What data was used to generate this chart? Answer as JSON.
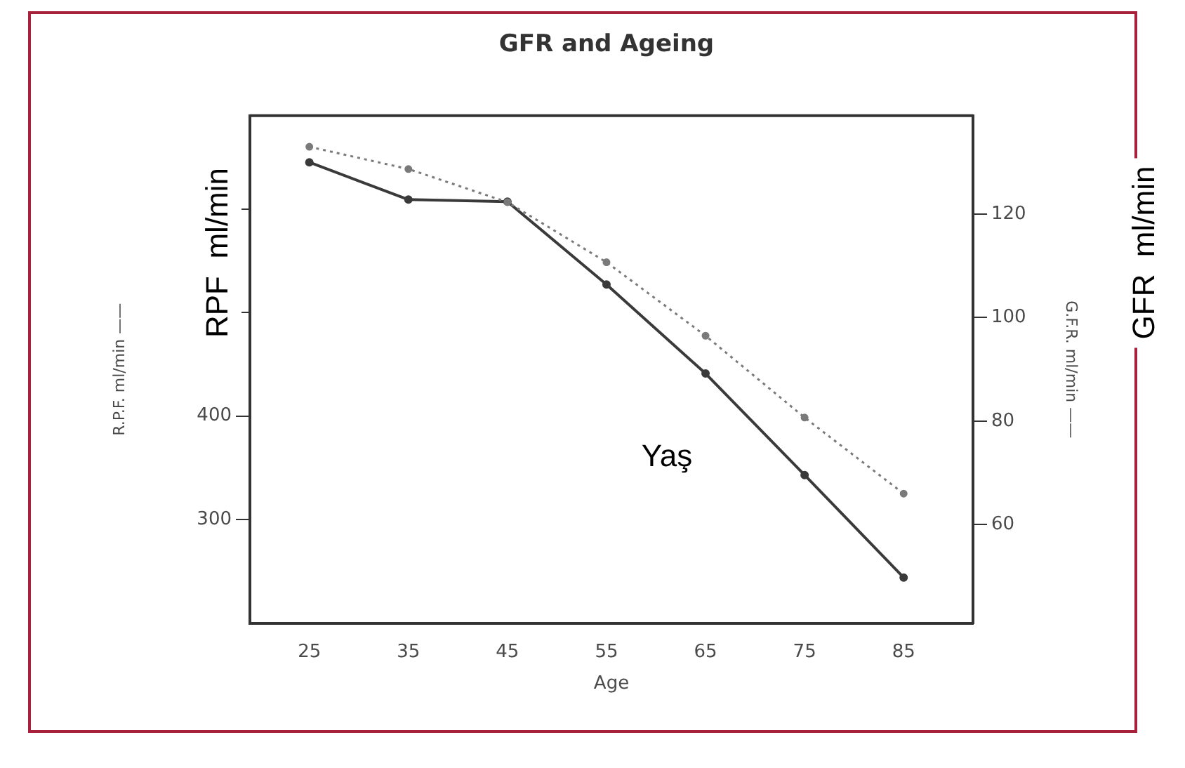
{
  "chart_data": {
    "type": "line",
    "title": "GFR and Ageing",
    "xlabel": "Age",
    "ylabel": "R.P.F. ml/min ——",
    "y2label": "G.F.R. ml/min ——",
    "x": [
      25,
      35,
      45,
      55,
      65,
      75,
      85
    ],
    "xlim": [
      19,
      92
    ],
    "xticks": [
      25,
      35,
      45,
      55,
      65,
      75,
      85
    ],
    "ylim": [
      200,
      690
    ],
    "yticks": [
      300,
      400,
      {
        "value": 500,
        "label": null
      },
      {
        "value": 600,
        "label": null
      }
    ],
    "y2lim": [
      41,
      139
    ],
    "y2ticks": [
      60,
      80,
      100,
      120
    ],
    "series": [
      {
        "color": "#3a3a3a",
        "values": [
          645,
          609,
          607,
          527,
          441,
          343,
          244
        ],
        "line_style": "solid"
      },
      {
        "color": "#7a7a7a",
        "axis": "y2",
        "values": [
          133,
          128.7,
          122.3,
          110.7,
          96.5,
          80.7,
          66
        ],
        "line_style": "dotted"
      }
    ],
    "marker": "circle",
    "grid": false,
    "legend": false,
    "annotations": [
      "RPF  ml/min",
      "GFR  ml/min",
      "Yaş"
    ]
  }
}
